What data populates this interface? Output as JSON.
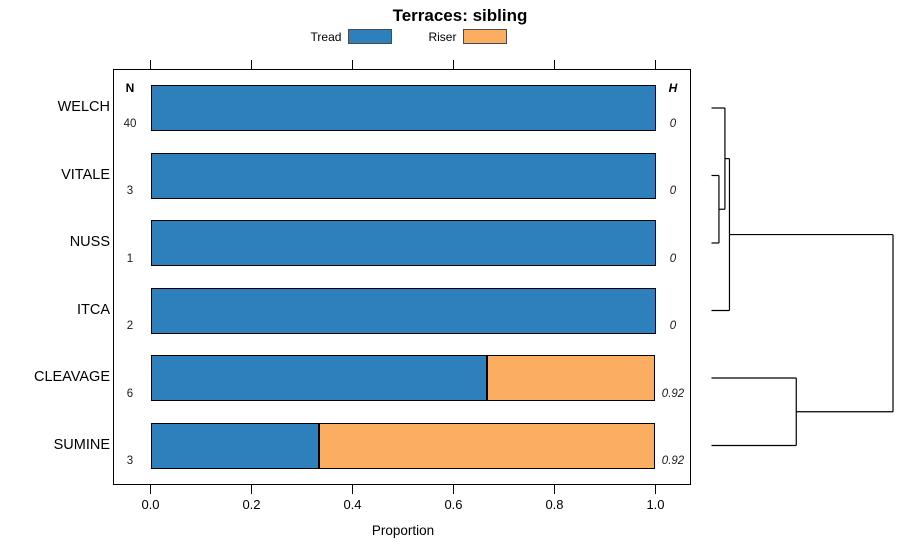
{
  "title": "Terraces: sibling",
  "legend": [
    {
      "label": "Tread",
      "color": "#2E80BD"
    },
    {
      "label": "Riser",
      "color": "#FBAD62"
    }
  ],
  "columns": {
    "n_header": "N",
    "h_header": "H"
  },
  "x_axis": {
    "label": "Proportion",
    "tick_labels": [
      "0.0",
      "0.2",
      "0.4",
      "0.6",
      "0.8",
      "1.0"
    ],
    "tick_values": [
      0,
      0.2,
      0.4,
      0.6,
      0.8,
      1.0
    ]
  },
  "chart_data": {
    "type": "bar",
    "orientation": "horizontal",
    "stacked": true,
    "title": "Terraces: sibling",
    "xlabel": "Proportion",
    "xlim": [
      0,
      1
    ],
    "categories": [
      "WELCH",
      "VITALE",
      "NUSS",
      "ITCA",
      "CLEAVAGE",
      "SUMINE"
    ],
    "n_values": [
      40,
      3,
      1,
      2,
      6,
      3
    ],
    "h_values": [
      "0",
      "0",
      "0",
      "0",
      "0.92",
      "0.92"
    ],
    "series": [
      {
        "name": "Tread",
        "color": "#2E80BD",
        "values": [
          1,
          1,
          1,
          1,
          0.667,
          0.333
        ]
      },
      {
        "name": "Riser",
        "color": "#FBAD62",
        "values": [
          0,
          0,
          0,
          0,
          0.333,
          0.667
        ]
      }
    ],
    "dendrogram": {
      "type": "node",
      "height": 1.0,
      "children": [
        {
          "type": "node",
          "height": 0.099,
          "children": [
            {
              "type": "node",
              "height": 0.074,
              "children": [
                {
                  "type": "leaf",
                  "index": 0
                },
                {
                  "type": "node",
                  "height": 0.041,
                  "children": [
                    {
                      "type": "leaf",
                      "index": 1
                    },
                    {
                      "type": "leaf",
                      "index": 2
                    }
                  ]
                }
              ]
            },
            {
              "type": "leaf",
              "index": 3
            }
          ]
        },
        {
          "type": "node",
          "height": 0.467,
          "children": [
            {
              "type": "leaf",
              "index": 4
            },
            {
              "type": "leaf",
              "index": 5
            }
          ]
        }
      ]
    }
  }
}
